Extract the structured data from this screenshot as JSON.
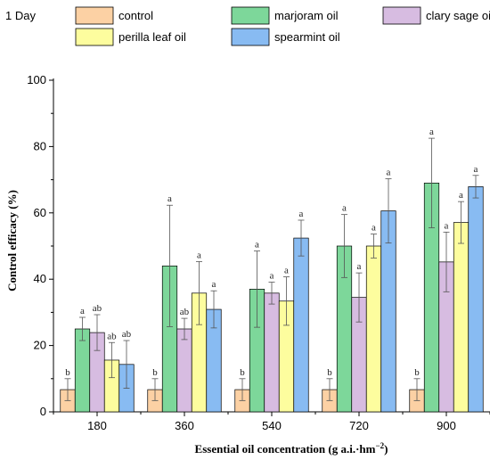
{
  "chart_data": {
    "type": "bar",
    "annotation": "1 Day",
    "xlabel_main": "Essential oil concentration (g a.i.·hm",
    "xlabel_sup": "−2",
    "xlabel_end": ")",
    "ylabel": "Control efficacy (%)",
    "ylim": [
      0,
      100
    ],
    "yticks": [
      "0",
      "20",
      "40",
      "60",
      "80",
      "100"
    ],
    "categories": [
      "180",
      "360",
      "540",
      "720",
      "900"
    ],
    "legend_position": "top",
    "series": [
      {
        "name": "control",
        "color": "#fcd1a4",
        "values": [
          6.7,
          6.7,
          6.7,
          6.7,
          6.7
        ],
        "errors": [
          3.3,
          3.3,
          3.3,
          3.3,
          3.3
        ],
        "labels": [
          "b",
          "b",
          "b",
          "b",
          "b"
        ]
      },
      {
        "name": "marjoram oil",
        "color": "#7dd79a",
        "values": [
          25.0,
          44.0,
          37.0,
          50.0,
          69.0
        ],
        "errors": [
          3.5,
          18.3,
          11.5,
          9.5,
          13.5
        ],
        "labels": [
          "a",
          "a",
          "a",
          "a",
          "a"
        ]
      },
      {
        "name": "clary sage oil",
        "color": "#d7bce1",
        "values": [
          23.9,
          25.0,
          35.8,
          34.5,
          45.2
        ],
        "errors": [
          5.4,
          3.2,
          3.3,
          7.4,
          9.0
        ],
        "labels": [
          "ab",
          "ab",
          "a",
          "a",
          "a"
        ]
      },
      {
        "name": "perilla leaf oil",
        "color": "#fdfd9e",
        "values": [
          15.6,
          35.8,
          33.4,
          50.0,
          57.1
        ],
        "errors": [
          5.3,
          9.5,
          7.3,
          3.6,
          6.3
        ],
        "labels": [
          "ab",
          "a",
          "a",
          "a",
          "a"
        ]
      },
      {
        "name": "spearmint oil",
        "color": "#88bbf2",
        "values": [
          14.3,
          30.9,
          52.4,
          60.6,
          67.9
        ],
        "errors": [
          7.2,
          5.6,
          5.4,
          9.7,
          3.4
        ],
        "labels": [
          "ab",
          "a",
          "a",
          "a",
          "a"
        ]
      }
    ]
  }
}
